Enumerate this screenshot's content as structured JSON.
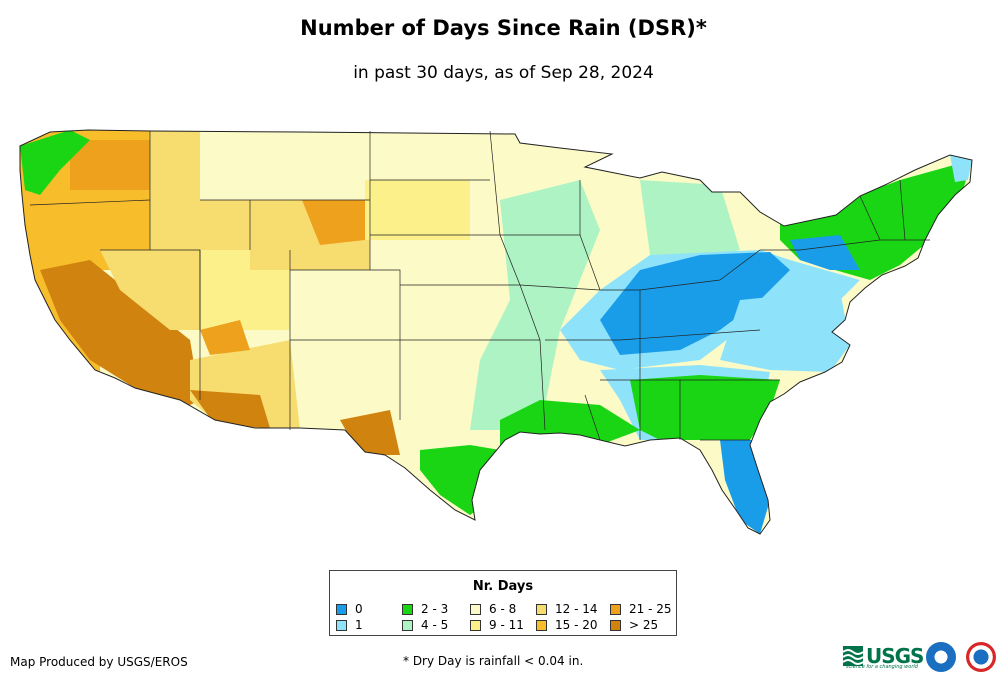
{
  "header": {
    "title": "Number of Days Since Rain (DSR)*",
    "subtitle": "in past 30 days, as of Sep 28, 2024"
  },
  "legend": {
    "title": "Nr. Days",
    "items": [
      {
        "label": "0",
        "color": "#1a9de9"
      },
      {
        "label": "1",
        "color": "#8ee3fb"
      },
      {
        "label": "2 - 3",
        "color": "#19d514"
      },
      {
        "label": "4 - 5",
        "color": "#aef3c3"
      },
      {
        "label": "6 - 8",
        "color": "#fcfbc8"
      },
      {
        "label": "9 - 11",
        "color": "#fbf08a"
      },
      {
        "label": "12 - 14",
        "color": "#f7dc70"
      },
      {
        "label": "15 - 20",
        "color": "#f7bd2b"
      },
      {
        "label": "21 - 25",
        "color": "#eda11c"
      },
      {
        "label": "> 25",
        "color": "#d0830e"
      }
    ]
  },
  "footer": {
    "credit": "Map Produced by USGS/EROS",
    "footnote": "* Dry Day is rainfall < 0.04 in."
  },
  "logos": {
    "usgs_text": "USGS",
    "usgs_tagline": "science for a changing world",
    "noaa_icon": "noaa-logo-icon",
    "nws_icon": "nws-logo-icon"
  },
  "colors": {
    "border": "#222222",
    "usgs_green": "#00734a"
  }
}
